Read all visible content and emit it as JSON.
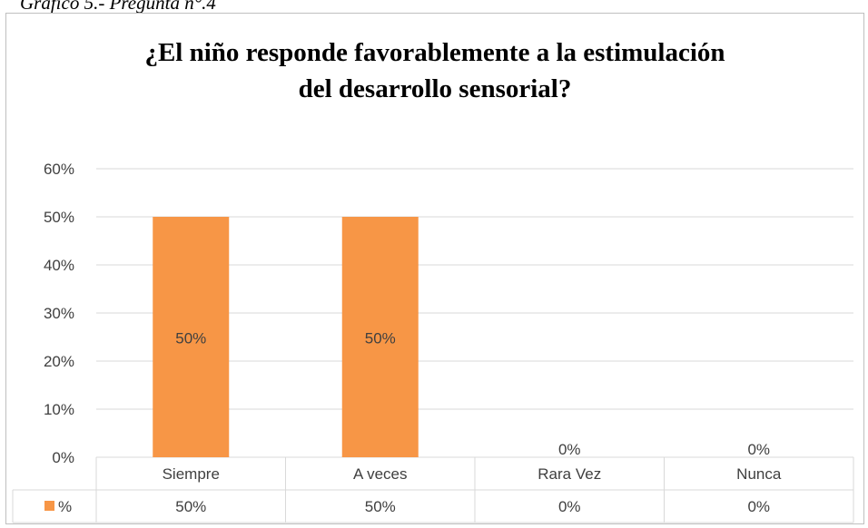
{
  "caption": "Gráfico 5.- Pregunta n°.4",
  "title_lines": [
    "¿El niño responde favorablemente a la estimulación",
    "del desarrollo sensorial?"
  ],
  "chart_data": {
    "type": "bar",
    "title": "¿El niño responde favorablemente a la estimulación del desarrollo sensorial?",
    "categories": [
      "Siempre",
      "A veces",
      "Rara Vez",
      "Nunca"
    ],
    "series": [
      {
        "name": "%",
        "values": [
          50,
          50,
          0,
          0
        ],
        "color": "#F79646"
      }
    ],
    "value_labels": [
      "50%",
      "50%",
      "0%",
      "0%"
    ],
    "y_ticks": [
      "0%",
      "10%",
      "20%",
      "30%",
      "40%",
      "50%",
      "60%"
    ],
    "ylim": [
      0,
      60
    ],
    "grid": true,
    "legend": "data-table",
    "data_table": {
      "series_key": "%",
      "row_values": [
        "50%",
        "50%",
        "0%",
        "0%"
      ]
    },
    "grid_color": "#d9d9d9",
    "table_border_color": "#d9d9d9",
    "text_color": "#404040"
  }
}
